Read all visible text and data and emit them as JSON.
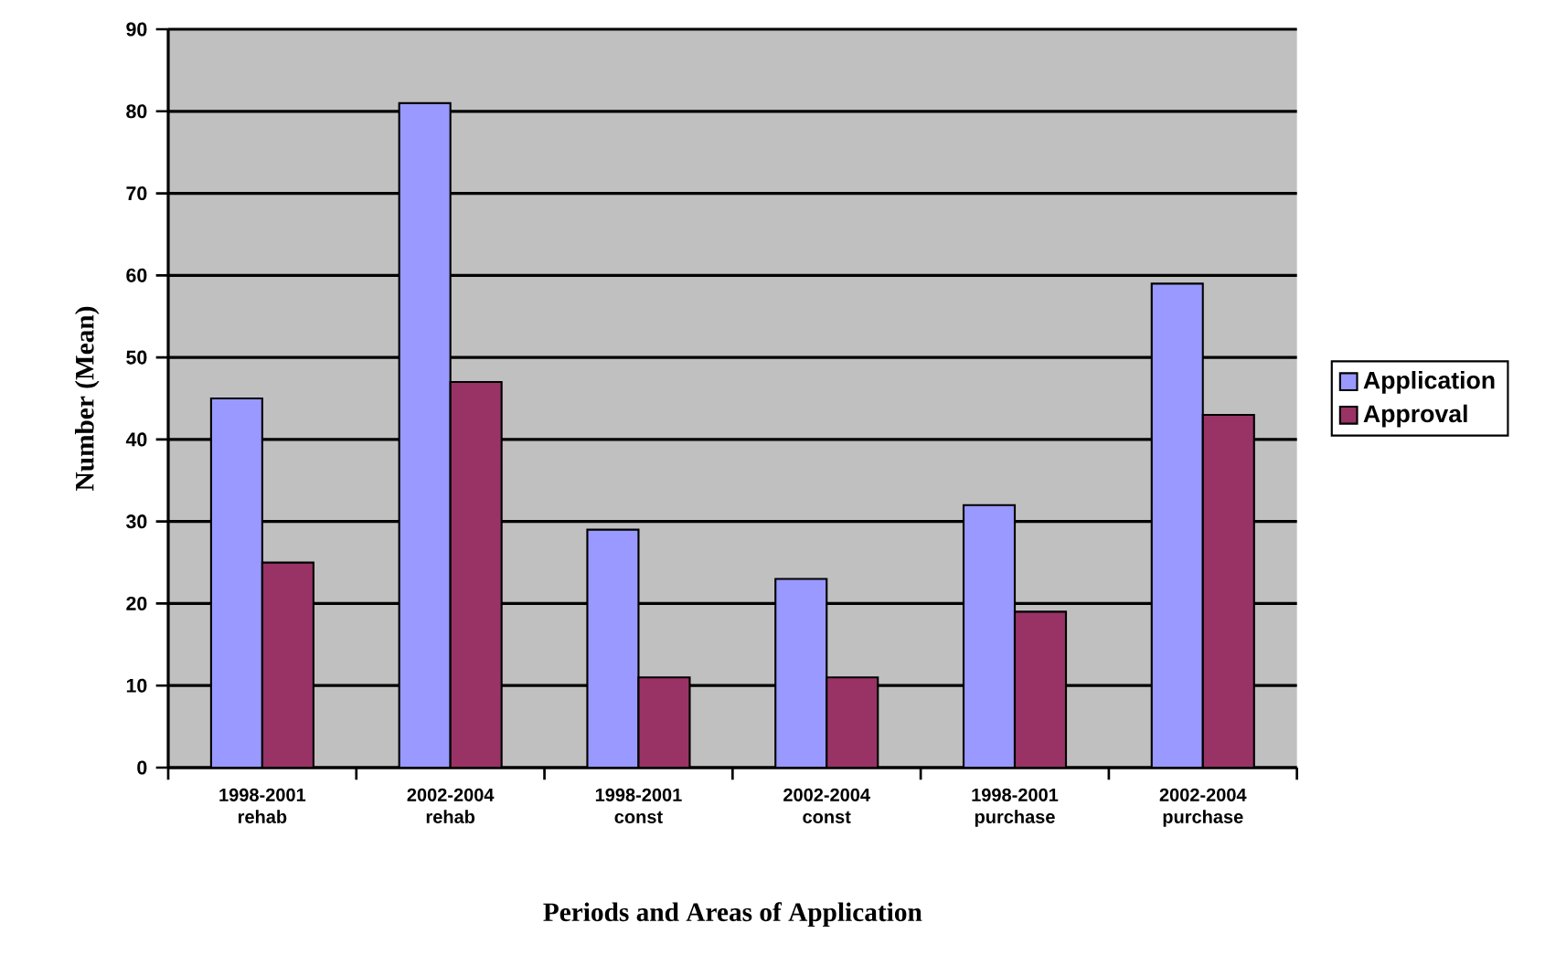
{
  "chart_data": {
    "type": "bar",
    "xlabel": "Periods and Areas of Application",
    "ylabel": "Number (Mean)",
    "categories": [
      "1998-2001 rehab",
      "2002-2004 rehab",
      "1998-2001 const",
      "2002-2004 const",
      "1998-2001 purchase",
      "2002-2004 purchase"
    ],
    "series": [
      {
        "name": "Application",
        "color": "#9999ff",
        "values": [
          45,
          81,
          29,
          23,
          32,
          59
        ]
      },
      {
        "name": "Approval",
        "color": "#993366",
        "values": [
          25,
          47,
          11,
          11,
          19,
          43
        ]
      }
    ],
    "ylim": [
      0,
      90
    ],
    "yticks": [
      0,
      10,
      20,
      30,
      40,
      50,
      60,
      70,
      80,
      90
    ],
    "grid": "y",
    "legend": "right"
  }
}
